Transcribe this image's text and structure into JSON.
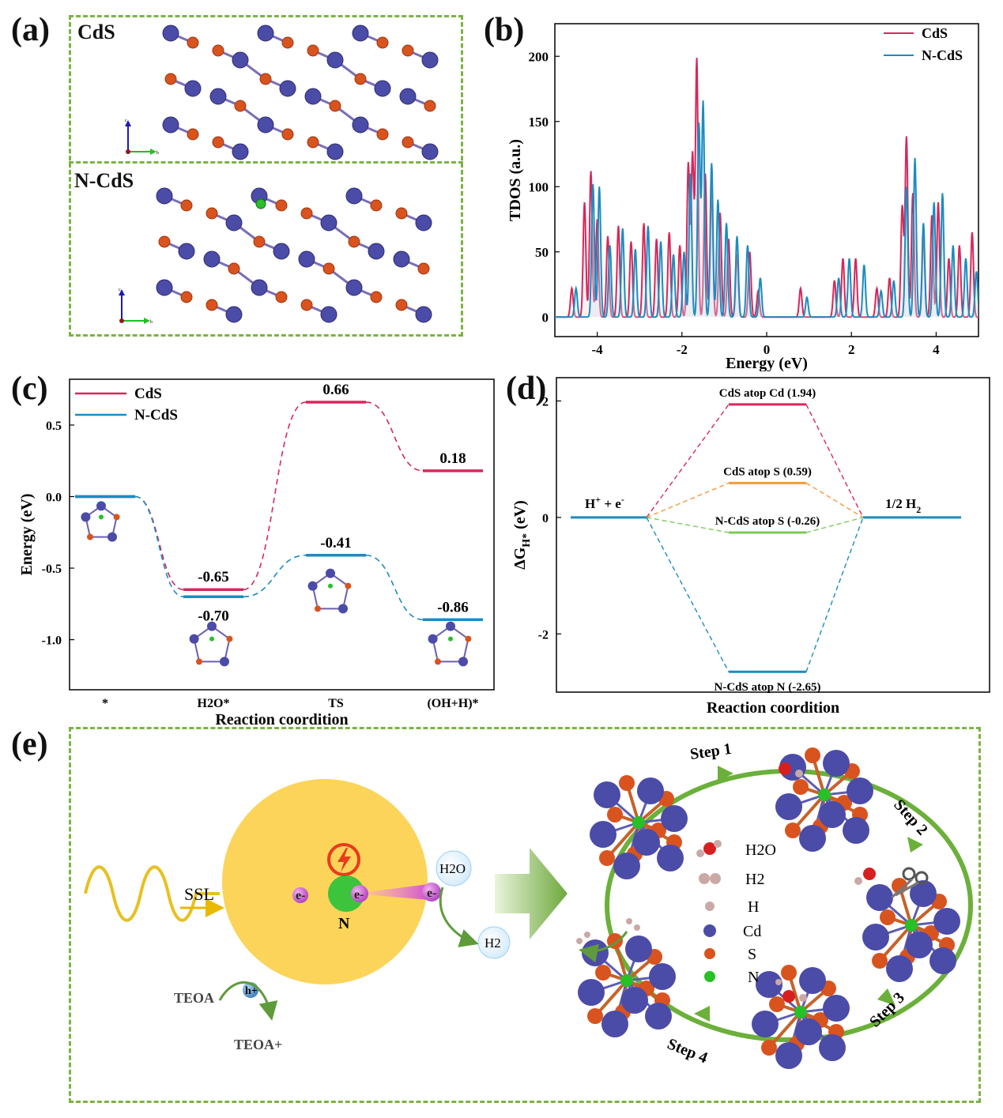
{
  "panels": {
    "a": {
      "letter": "(a)",
      "top_label": "CdS",
      "bottom_label": "N-CdS",
      "axis_labels": {
        "c": "c",
        "b": "b"
      }
    },
    "b": {
      "letter": "(b)"
    },
    "c": {
      "letter": "(c)",
      "x_ticks": [
        "*",
        "H2O*",
        "TS",
        "(OH+H)*"
      ]
    },
    "d": {
      "letter": "(d)"
    },
    "e": {
      "letter": "(e)",
      "ssl": "SSL",
      "electron": "e-",
      "n_label": "N",
      "h2o": "H2O",
      "h2": "H2",
      "hole": "h+",
      "teoa": "TEOA",
      "teoa_plus": "TEOA+",
      "steps": [
        "Step 1",
        "Step 2",
        "Step 3",
        "Step 4"
      ],
      "legend": [
        "H2O",
        "H2",
        "H",
        "Cd",
        "S",
        "N"
      ],
      "legend_colors": {
        "H2O_O": "#d81f1f",
        "H": "#c9a9a6",
        "Cd": "#4b4ba8",
        "S": "#d9531e",
        "N": "#27c027"
      }
    }
  },
  "chart_data": [
    {
      "panel": "b",
      "type": "line",
      "xlabel": "Energy (eV)",
      "ylabel": "TDOS (a.u.)",
      "xlim": [
        -5.0,
        5.0
      ],
      "ylim": [
        -15,
        225
      ],
      "xticks": [
        -4,
        -2,
        0,
        2,
        4
      ],
      "yticks": [
        0,
        50,
        100,
        150,
        200
      ],
      "series": [
        {
          "name": "CdS",
          "color": "#d6285b",
          "peaks": [
            [
              -4.6,
              22
            ],
            [
              -4.3,
              88
            ],
            [
              -4.15,
              112
            ],
            [
              -4.0,
              75
            ],
            [
              -3.75,
              62
            ],
            [
              -3.5,
              70
            ],
            [
              -3.2,
              58
            ],
            [
              -2.9,
              72
            ],
            [
              -2.6,
              60
            ],
            [
              -2.3,
              65
            ],
            [
              -2.05,
              55
            ],
            [
              -1.85,
              118
            ],
            [
              -1.75,
              125
            ],
            [
              -1.65,
              198
            ],
            [
              -1.45,
              110
            ],
            [
              -1.3,
              98
            ],
            [
              -1.1,
              80
            ],
            [
              -0.9,
              60
            ],
            [
              -0.7,
              48
            ],
            [
              -0.4,
              50
            ],
            [
              -0.2,
              20
            ],
            [
              0.8,
              22
            ],
            [
              1.6,
              28
            ],
            [
              1.8,
              45
            ],
            [
              2.1,
              45
            ],
            [
              2.6,
              22
            ],
            [
              2.9,
              30
            ],
            [
              3.2,
              85
            ],
            [
              3.3,
              138
            ],
            [
              3.45,
              95
            ],
            [
              3.7,
              62
            ],
            [
              3.9,
              78
            ],
            [
              4.05,
              88
            ],
            [
              4.3,
              45
            ],
            [
              4.55,
              55
            ],
            [
              4.85,
              65
            ]
          ]
        },
        {
          "name": "N-CdS",
          "color": "#1b8cbf",
          "peaks": [
            [
              -4.5,
              22
            ],
            [
              -4.1,
              102
            ],
            [
              -3.95,
              100
            ],
            [
              -3.7,
              55
            ],
            [
              -3.4,
              68
            ],
            [
              -3.1,
              52
            ],
            [
              -2.8,
              70
            ],
            [
              -2.5,
              58
            ],
            [
              -2.2,
              48
            ],
            [
              -1.95,
              50
            ],
            [
              -1.8,
              110
            ],
            [
              -1.6,
              148
            ],
            [
              -1.5,
              165
            ],
            [
              -1.3,
              118
            ],
            [
              -1.15,
              90
            ],
            [
              -0.95,
              72
            ],
            [
              -0.7,
              62
            ],
            [
              -0.45,
              55
            ],
            [
              -0.15,
              30
            ],
            [
              0.95,
              15
            ],
            [
              1.7,
              30
            ],
            [
              1.95,
              45
            ],
            [
              2.3,
              40
            ],
            [
              2.7,
              20
            ],
            [
              3.0,
              28
            ],
            [
              3.3,
              100
            ],
            [
              3.5,
              122
            ],
            [
              3.7,
              72
            ],
            [
              3.95,
              88
            ],
            [
              4.15,
              95
            ],
            [
              4.4,
              55
            ],
            [
              4.7,
              45
            ],
            [
              4.95,
              35
            ]
          ]
        }
      ]
    },
    {
      "panel": "c",
      "type": "line",
      "xlabel": "Reaction coordition",
      "ylabel": "Energy (eV)",
      "ylim": [
        -1.35,
        0.82
      ],
      "yticks": [
        0.5,
        0.0,
        -0.5,
        -1.0
      ],
      "ytick_labels": [
        "0.5",
        "0.0",
        "-0.5",
        "-1.0"
      ],
      "categories": [
        "*",
        "H2O*",
        "TS",
        "(OH+H)*"
      ],
      "series": [
        {
          "name": "CdS",
          "color": "#d6285b",
          "values": [
            0,
            -0.65,
            0.66,
            0.18
          ],
          "labels": [
            "",
            "-0.65",
            "0.66",
            "0.18"
          ]
        },
        {
          "name": "N-CdS",
          "color": "#1b8cbf",
          "values": [
            0,
            -0.7,
            -0.41,
            -0.86
          ],
          "labels": [
            "",
            "-0.70",
            "-0.41",
            "-0.86"
          ]
        }
      ]
    },
    {
      "panel": "d",
      "type": "line",
      "xlabel": "Reaction coordition",
      "ylabel": "ΔG",
      "ylabel_sub": "H*",
      "ylabel_unit": "(eV)",
      "ylim": [
        -3.0,
        2.4
      ],
      "yticks": [
        2,
        0,
        -2
      ],
      "left_label": "H",
      "left_label_sup1": "+",
      "left_label_mid": " + e",
      "left_label_sup2": "-",
      "right_label": "1/2 H",
      "right_label_sub": "2",
      "levels": [
        {
          "label": "CdS atop Cd (1.94)",
          "value": 1.94,
          "color": "#d6285b"
        },
        {
          "label": "CdS atop S (0.59)",
          "value": 0.59,
          "color": "#f39a3c"
        },
        {
          "label": "N-CdS  atop S (-0.26)",
          "value": -0.26,
          "color": "#7bc95a"
        },
        {
          "label": "N-CdS  atop N (-2.65)",
          "value": -2.65,
          "color": "#1b8cbf"
        }
      ]
    }
  ]
}
